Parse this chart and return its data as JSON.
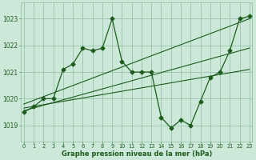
{
  "x": [
    0,
    1,
    2,
    3,
    4,
    5,
    6,
    7,
    8,
    9,
    10,
    11,
    12,
    13,
    14,
    15,
    16,
    17,
    18,
    19,
    20,
    21,
    22,
    23
  ],
  "y": [
    1019.5,
    1019.7,
    1020.0,
    1020.0,
    1021.1,
    1021.3,
    1021.9,
    1021.8,
    1021.9,
    1023.0,
    1021.4,
    1021.0,
    1021.0,
    1021.0,
    1019.3,
    1018.9,
    1019.2,
    1019.0,
    1019.9,
    1020.8,
    1021.0,
    1021.8,
    1023.0,
    1023.1
  ],
  "trend1_x": [
    0,
    23
  ],
  "trend1_y": [
    1019.8,
    1023.0
  ],
  "trend2_x": [
    0,
    23
  ],
  "trend2_y": [
    1019.55,
    1021.9
  ],
  "trend3_x": [
    0,
    23
  ],
  "trend3_y": [
    1019.65,
    1021.1
  ],
  "bg_color": "#cce8d8",
  "line_color": "#1e5c1e",
  "grid_color": "#99c4aa",
  "ylabel_ticks": [
    1019,
    1020,
    1021,
    1022,
    1023
  ],
  "xlabel_ticks": [
    0,
    1,
    2,
    3,
    4,
    5,
    6,
    7,
    8,
    9,
    10,
    11,
    12,
    13,
    14,
    15,
    16,
    17,
    18,
    19,
    20,
    21,
    22,
    23
  ],
  "ylim": [
    1018.4,
    1023.6
  ],
  "xlim": [
    -0.3,
    23.3
  ],
  "xlabel": "Graphe pression niveau de la mer (hPa)",
  "marker": "D",
  "markersize": 2.5,
  "linewidth": 0.9,
  "trend_linewidth": 0.8
}
